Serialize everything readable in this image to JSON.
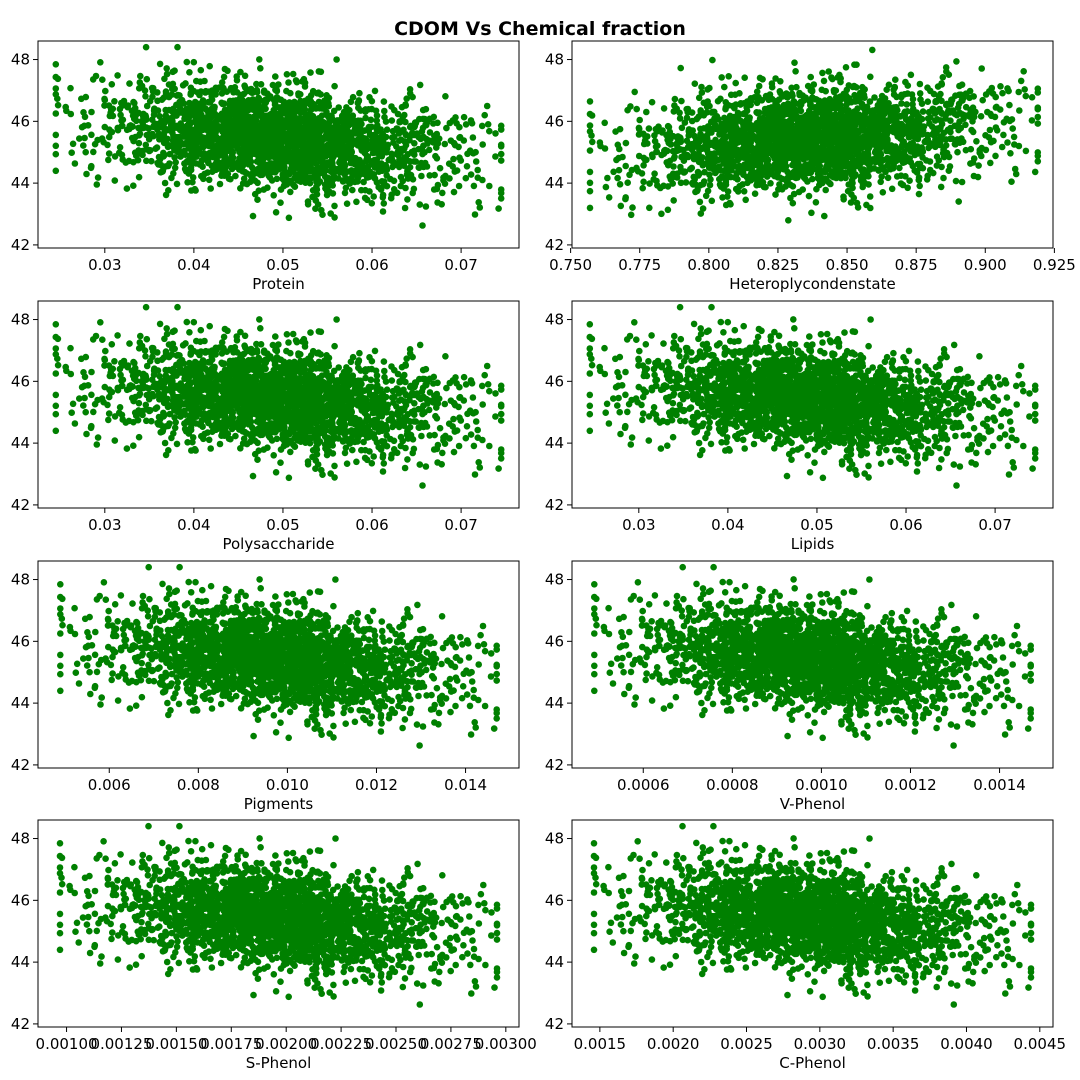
{
  "title": "CDOM Vs Chemical fraction",
  "colors": {
    "marker": "#008000",
    "axes": "#000000",
    "background": "#ffffff"
  },
  "chart_data": [
    {
      "type": "scatter",
      "xlabel": "Protein",
      "xlim": [
        0.0225,
        0.0765
      ],
      "ylim": [
        41.9,
        48.6
      ],
      "xticks": [
        "0.03",
        "0.04",
        "0.05",
        "0.06",
        "0.07"
      ],
      "yticks": [
        "42",
        "44",
        "46",
        "48"
      ],
      "x_range": [
        0.0245,
        0.0745
      ],
      "y_range": [
        42.2,
        48.4
      ],
      "trend": "negative",
      "n_points": 2500
    },
    {
      "type": "scatter",
      "xlabel": "Heteroplycondenstate",
      "xlim": [
        0.7505,
        0.9245
      ],
      "ylim": [
        41.9,
        48.6
      ],
      "xticks": [
        "0.750",
        "0.775",
        "0.800",
        "0.825",
        "0.850",
        "0.875",
        "0.900",
        "0.925"
      ],
      "yticks": [
        "42",
        "44",
        "46",
        "48"
      ],
      "x_range": [
        0.757,
        0.919
      ],
      "y_range": [
        42.2,
        48.4
      ],
      "trend": "positive",
      "n_points": 2500
    },
    {
      "type": "scatter",
      "xlabel": "Polysaccharide",
      "xlim": [
        0.0225,
        0.0765
      ],
      "ylim": [
        41.9,
        48.6
      ],
      "xticks": [
        "0.03",
        "0.04",
        "0.05",
        "0.06",
        "0.07"
      ],
      "yticks": [
        "42",
        "44",
        "46",
        "48"
      ],
      "x_range": [
        0.0245,
        0.0745
      ],
      "y_range": [
        42.2,
        48.4
      ],
      "trend": "negative",
      "n_points": 2500
    },
    {
      "type": "scatter",
      "xlabel": "Lipids",
      "xlim": [
        0.0225,
        0.0765
      ],
      "ylim": [
        41.9,
        48.6
      ],
      "xticks": [
        "0.03",
        "0.04",
        "0.05",
        "0.06",
        "0.07"
      ],
      "yticks": [
        "42",
        "44",
        "46",
        "48"
      ],
      "x_range": [
        0.0245,
        0.0745
      ],
      "y_range": [
        42.2,
        48.4
      ],
      "trend": "negative",
      "n_points": 2500
    },
    {
      "type": "scatter",
      "xlabel": "Pigments",
      "xlim": [
        0.0044,
        0.0152
      ],
      "ylim": [
        41.9,
        48.6
      ],
      "xticks": [
        "0.006",
        "0.008",
        "0.010",
        "0.012",
        "0.014"
      ],
      "yticks": [
        "42",
        "44",
        "46",
        "48"
      ],
      "x_range": [
        0.0049,
        0.0147
      ],
      "y_range": [
        42.2,
        48.4
      ],
      "trend": "negative",
      "n_points": 2500
    },
    {
      "type": "scatter",
      "xlabel": "V-Phenol",
      "xlim": [
        0.00044,
        0.00152
      ],
      "ylim": [
        41.9,
        48.6
      ],
      "xticks": [
        "0.0006",
        "0.0008",
        "0.0010",
        "0.0012",
        "0.0014"
      ],
      "yticks": [
        "42",
        "44",
        "46",
        "48"
      ],
      "x_range": [
        0.00049,
        0.00147
      ],
      "y_range": [
        42.2,
        48.4
      ],
      "trend": "negative",
      "n_points": 2500
    },
    {
      "type": "scatter",
      "xlabel": "S-Phenol",
      "xlim": [
        0.00087,
        0.00306
      ],
      "ylim": [
        41.9,
        48.6
      ],
      "xticks": [
        "0.00100",
        "0.00125",
        "0.00150",
        "0.00175",
        "0.00200",
        "0.00225",
        "0.00250",
        "0.00275",
        "0.00300"
      ],
      "yticks": [
        "42",
        "44",
        "46",
        "48"
      ],
      "x_range": [
        0.00097,
        0.00296
      ],
      "y_range": [
        42.2,
        48.4
      ],
      "trend": "negative",
      "n_points": 2500
    },
    {
      "type": "scatter",
      "xlabel": "C-Phenol",
      "xlim": [
        0.00131,
        0.00459
      ],
      "ylim": [
        41.9,
        48.6
      ],
      "xticks": [
        "0.0015",
        "0.0020",
        "0.0025",
        "0.0030",
        "0.0035",
        "0.0040",
        "0.0045"
      ],
      "yticks": [
        "42",
        "44",
        "46",
        "48"
      ],
      "x_range": [
        0.00146,
        0.00444
      ],
      "y_range": [
        42.2,
        48.4
      ],
      "trend": "negative",
      "n_points": 2500
    }
  ]
}
